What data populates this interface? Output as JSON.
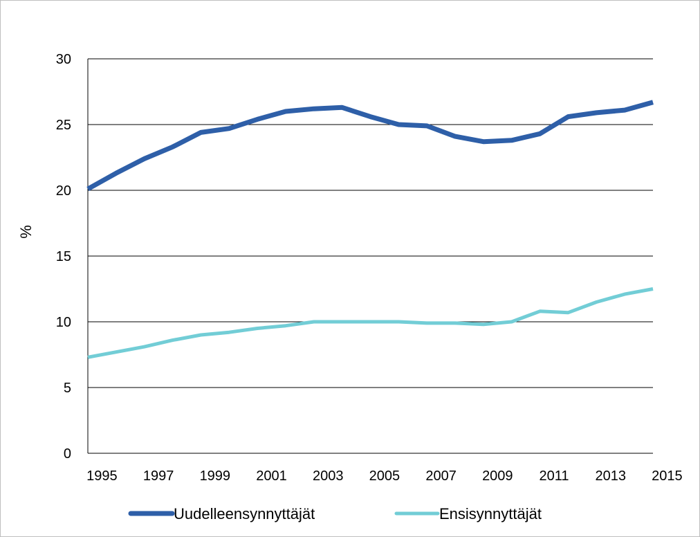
{
  "chart_data": {
    "type": "line",
    "title": "",
    "xlabel": "",
    "ylabel": "%",
    "ylim": [
      0,
      30
    ],
    "yticks": [
      0,
      5,
      10,
      15,
      20,
      25,
      30
    ],
    "xlim": [
      1994.5,
      2014.5
    ],
    "xticks": [
      1995,
      1997,
      1999,
      2001,
      2003,
      2005,
      2007,
      2009,
      2011,
      2013,
      2015
    ],
    "grid": "horizontal",
    "legend": "bottom",
    "x": [
      1994.5,
      1995.5,
      1996.5,
      1997.5,
      1998.5,
      1999.5,
      2000.5,
      2001.5,
      2002.5,
      2003.5,
      2004.5,
      2005.5,
      2006.5,
      2007.5,
      2008.5,
      2009.5,
      2010.5,
      2011.5,
      2012.5,
      2013.5,
      2014.5
    ],
    "series": [
      {
        "name": "Uudelleensynnyttäjät",
        "color": "#2e5fa8",
        "values": [
          20.1,
          21.3,
          22.4,
          23.3,
          24.4,
          24.7,
          25.4,
          26.0,
          26.2,
          26.3,
          25.6,
          25.0,
          24.9,
          24.1,
          23.7,
          23.8,
          24.3,
          25.6,
          25.9,
          26.1,
          26.7
        ]
      },
      {
        "name": "Ensisynnyttäjät",
        "color": "#72cdd6",
        "values": [
          7.3,
          7.7,
          8.1,
          8.6,
          9.0,
          9.2,
          9.5,
          9.7,
          10.0,
          10.0,
          10.0,
          10.0,
          9.9,
          9.9,
          9.8,
          10.0,
          10.8,
          10.7,
          11.5,
          12.1,
          12.5
        ]
      }
    ]
  }
}
